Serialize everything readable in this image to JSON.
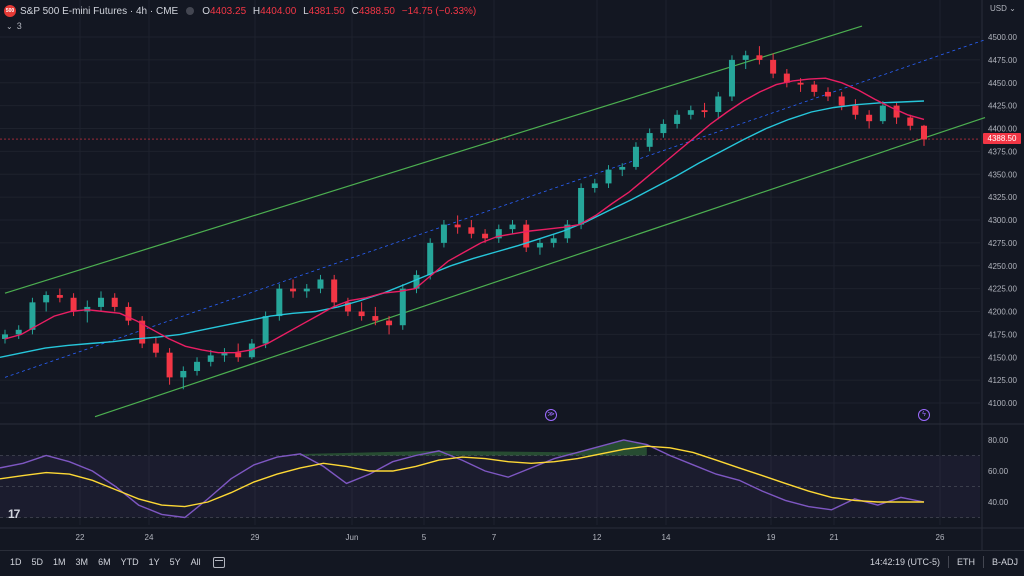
{
  "header": {
    "logo_text": "500",
    "symbol_title": "S&P 500 E-mini Futures · 4h · CME",
    "open_label": "O",
    "open": "4403.25",
    "high_label": "H",
    "high": "4404.00",
    "low_label": "L",
    "low": "4381.50",
    "close_label": "C",
    "close": "4388.50",
    "change": "−14.75 (−0.33%)",
    "indicators_count": "3"
  },
  "currency": "USD",
  "current_price": "4388.50",
  "tv_logo": "17",
  "colors": {
    "up": "#26a69a",
    "down": "#f23645",
    "ma_fast": "#e91e63",
    "ma_slow": "#26c6da",
    "channel": "#4caf50",
    "rsi": "#7e57c2",
    "rsi_ma": "#fdd835"
  },
  "event_icons": [
    "dividend-icon",
    "earnings-icon"
  ],
  "chart_data": {
    "type": "candlestick",
    "y_ticks": [
      "4500.00",
      "4475.00",
      "4450.00",
      "4425.00",
      "4400.00",
      "4375.00",
      "4350.00",
      "4325.00",
      "4300.00",
      "4275.00",
      "4250.00",
      "4225.00",
      "4200.00",
      "4175.00",
      "4150.00",
      "4125.00",
      "4100.00"
    ],
    "ylim": [
      4090,
      4510
    ],
    "x_ticks": [
      "22",
      "24",
      "29",
      "Jun",
      "5",
      "7",
      "12",
      "14",
      "19",
      "21",
      "26"
    ],
    "rsi_ticks": [
      "80.00",
      "60.00",
      "40.00"
    ],
    "rsi_lim": [
      25,
      85
    ],
    "candles": [
      [
        4170,
        4180,
        4165,
        4175
      ],
      [
        4175,
        4185,
        4170,
        4180
      ],
      [
        4180,
        4215,
        4175,
        4210
      ],
      [
        4210,
        4222,
        4200,
        4218
      ],
      [
        4218,
        4225,
        4210,
        4215
      ],
      [
        4215,
        4220,
        4195,
        4200
      ],
      [
        4200,
        4212,
        4188,
        4205
      ],
      [
        4205,
        4222,
        4200,
        4215
      ],
      [
        4215,
        4220,
        4200,
        4205
      ],
      [
        4205,
        4210,
        4185,
        4190
      ],
      [
        4190,
        4195,
        4160,
        4165
      ],
      [
        4165,
        4172,
        4150,
        4155
      ],
      [
        4155,
        4160,
        4120,
        4128
      ],
      [
        4128,
        4140,
        4115,
        4135
      ],
      [
        4135,
        4150,
        4130,
        4145
      ],
      [
        4145,
        4158,
        4140,
        4152
      ],
      [
        4152,
        4160,
        4145,
        4155
      ],
      [
        4155,
        4165,
        4145,
        4150
      ],
      [
        4150,
        4170,
        4148,
        4165
      ],
      [
        4165,
        4200,
        4160,
        4195
      ],
      [
        4195,
        4230,
        4190,
        4225
      ],
      [
        4225,
        4235,
        4215,
        4222
      ],
      [
        4222,
        4230,
        4215,
        4225
      ],
      [
        4225,
        4240,
        4220,
        4235
      ],
      [
        4235,
        4240,
        4205,
        4210
      ],
      [
        4210,
        4215,
        4195,
        4200
      ],
      [
        4200,
        4210,
        4190,
        4195
      ],
      [
        4195,
        4205,
        4185,
        4190
      ],
      [
        4190,
        4195,
        4175,
        4185
      ],
      [
        4185,
        4230,
        4180,
        4225
      ],
      [
        4225,
        4245,
        4220,
        4240
      ],
      [
        4240,
        4280,
        4235,
        4275
      ],
      [
        4275,
        4300,
        4270,
        4295
      ],
      [
        4295,
        4305,
        4285,
        4292
      ],
      [
        4292,
        4300,
        4280,
        4285
      ],
      [
        4285,
        4290,
        4275,
        4280
      ],
      [
        4280,
        4295,
        4275,
        4290
      ],
      [
        4290,
        4300,
        4285,
        4295
      ],
      [
        4295,
        4300,
        4265,
        4270
      ],
      [
        4270,
        4280,
        4262,
        4275
      ],
      [
        4275,
        4285,
        4270,
        4280
      ],
      [
        4280,
        4300,
        4275,
        4295
      ],
      [
        4295,
        4340,
        4290,
        4335
      ],
      [
        4335,
        4345,
        4330,
        4340
      ],
      [
        4340,
        4360,
        4335,
        4355
      ],
      [
        4355,
        4362,
        4348,
        4358
      ],
      [
        4358,
        4385,
        4355,
        4380
      ],
      [
        4380,
        4400,
        4375,
        4395
      ],
      [
        4395,
        4410,
        4390,
        4405
      ],
      [
        4405,
        4420,
        4400,
        4415
      ],
      [
        4415,
        4425,
        4410,
        4420
      ],
      [
        4420,
        4428,
        4412,
        4418
      ],
      [
        4418,
        4440,
        4410,
        4435
      ],
      [
        4435,
        4480,
        4430,
        4475
      ],
      [
        4475,
        4485,
        4465,
        4480
      ],
      [
        4480,
        4490,
        4470,
        4475
      ],
      [
        4475,
        4482,
        4455,
        4460
      ],
      [
        4460,
        4465,
        4445,
        4450
      ],
      [
        4450,
        4455,
        4440,
        4448
      ],
      [
        4448,
        4452,
        4435,
        4440
      ],
      [
        4440,
        4445,
        4430,
        4435
      ],
      [
        4435,
        4440,
        4420,
        4425
      ],
      [
        4425,
        4432,
        4410,
        4415
      ],
      [
        4415,
        4420,
        4400,
        4408
      ],
      [
        4408,
        4430,
        4405,
        4425
      ],
      [
        4425,
        4428,
        4405,
        4412
      ],
      [
        4412,
        4415,
        4398,
        4403
      ],
      [
        4403,
        4404,
        4381,
        4388
      ]
    ],
    "ma_fast": [
      4170,
      4175,
      4185,
      4195,
      4200,
      4202,
      4200,
      4198,
      4190,
      4180,
      4170,
      4162,
      4158,
      4155,
      4155,
      4158,
      4165,
      4175,
      4185,
      4195,
      4205,
      4212,
      4215,
      4220,
      4222,
      4225,
      4240,
      4255,
      4265,
      4275,
      4282,
      4285,
      4288,
      4290,
      4292,
      4295,
      4305,
      4318,
      4330,
      4345,
      4360,
      4375,
      4390,
      4405,
      4418,
      4430,
      4440,
      4448,
      4452,
      4454,
      4455,
      4450,
      4442,
      4432,
      4423,
      4415,
      4410
    ],
    "ma_slow": [
      4150,
      4155,
      4160,
      4163,
      4165,
      4167,
      4170,
      4172,
      4175,
      4180,
      4185,
      4190,
      4195,
      4198,
      4200,
      4205,
      4212,
      4220,
      4230,
      4240,
      4250,
      4258,
      4265,
      4272,
      4280,
      4288,
      4298,
      4310,
      4322,
      4335,
      4348,
      4362,
      4375,
      4388,
      4400,
      4410,
      4418,
      4423,
      4426,
      4428,
      4429,
      4430
    ],
    "rsi": [
      62,
      65,
      70,
      66,
      60,
      50,
      38,
      32,
      30,
      42,
      55,
      64,
      69,
      71,
      63,
      52,
      58,
      66,
      70,
      73,
      67,
      60,
      56,
      62,
      68,
      72,
      76,
      80,
      77,
      70,
      64,
      58,
      54,
      47,
      41,
      37,
      35,
      42,
      38,
      43,
      40
    ],
    "rsi_ma": [
      55,
      57,
      59,
      58,
      54,
      48,
      42,
      38,
      37,
      40,
      46,
      53,
      58,
      62,
      65,
      63,
      60,
      60,
      63,
      67,
      69,
      68,
      66,
      65,
      66,
      68,
      71,
      74,
      76,
      75,
      72,
      67,
      62,
      57,
      52,
      47,
      43,
      41,
      40,
      40,
      40
    ]
  },
  "toolbar": {
    "tf_1d": "1D",
    "tf_5d": "5D",
    "tf_1m": "1M",
    "tf_3m": "3M",
    "tf_6m": "6M",
    "tf_ytd": "YTD",
    "tf_1y": "1Y",
    "tf_5y": "5Y",
    "tf_all": "All",
    "time": "14:42:19 (UTC-5)",
    "session": "ETH",
    "adjust": "B-ADJ"
  }
}
